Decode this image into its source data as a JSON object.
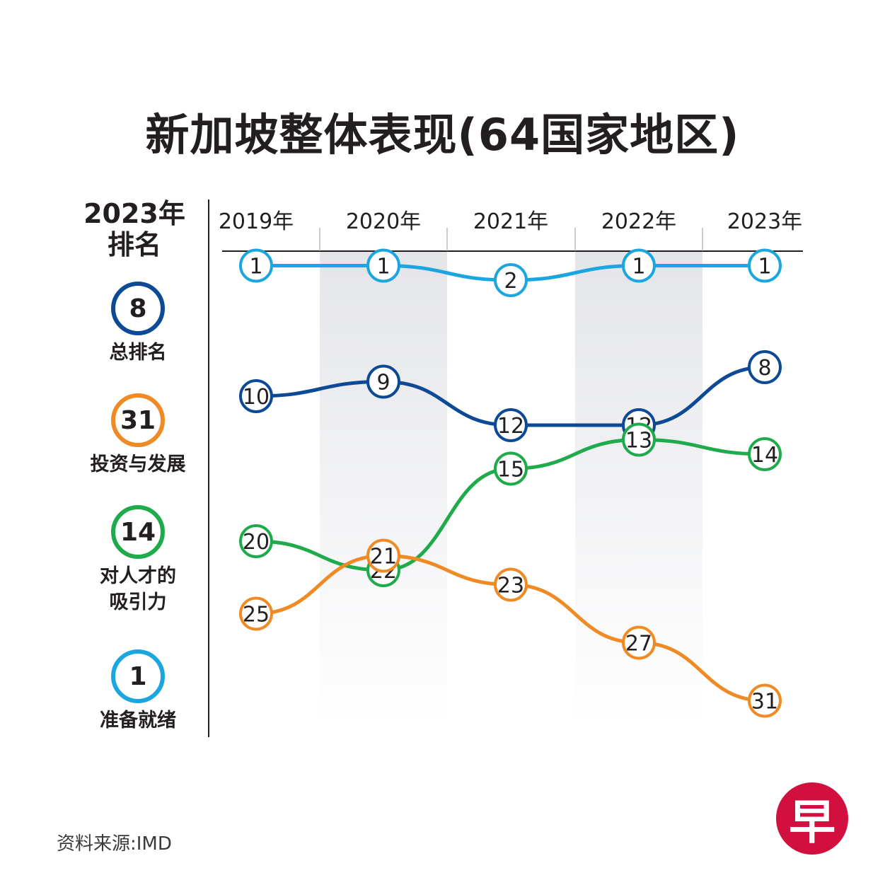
{
  "title": "新加坡整体表现(64国家地区)",
  "legend": {
    "heading_line1": "2023年",
    "heading_line2": "排名",
    "items": [
      {
        "value": "8",
        "label": "总排名",
        "color": "#0c4a96"
      },
      {
        "value": "31",
        "label": "投资与发展",
        "color": "#f08a24"
      },
      {
        "value": "14",
        "label": "对人才的\n吸引力",
        "color": "#1faa4b"
      },
      {
        "value": "1",
        "label": "准备就绪",
        "color": "#1ba6e0"
      }
    ]
  },
  "source": "资料来源:IMD",
  "logo_text": "早",
  "chart_data": {
    "type": "line",
    "categories": [
      "2019年",
      "2020年",
      "2021年",
      "2022年",
      "2023年"
    ],
    "y_inverted": true,
    "series": [
      {
        "name": "准备就绪",
        "values": [
          1,
          1,
          2,
          1,
          1
        ],
        "color": "#1ba6e0"
      },
      {
        "name": "总排名",
        "values": [
          10,
          9,
          12,
          12,
          8
        ],
        "color": "#0c4a96"
      },
      {
        "name": "对人才的吸引力",
        "values": [
          20,
          22,
          15,
          13,
          14
        ],
        "color": "#1faa4b"
      },
      {
        "name": "投资与发展",
        "values": [
          25,
          21,
          23,
          27,
          31
        ],
        "color": "#f08a24"
      }
    ]
  }
}
